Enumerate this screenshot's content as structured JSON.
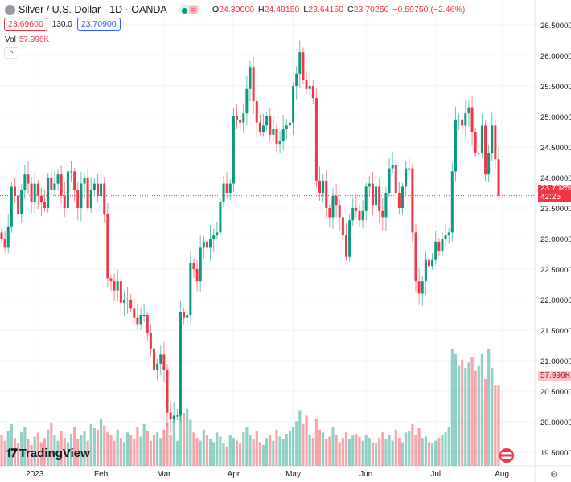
{
  "header": {
    "title": "Silver / U.S. Dollar · 1D · OANDA",
    "eq_label": "=",
    "ohlc": {
      "o_label": "O",
      "o": "24.30000",
      "h_label": "H",
      "h": "24.49150",
      "l_label": "L",
      "l": "23.64150",
      "c_label": "C",
      "c": "23.70250",
      "change": "−0.59750 (−2.46%)"
    },
    "sell_price": "23.69600",
    "spread": "130.0",
    "buy_price": "23.70900",
    "vol_label": "Vol",
    "vol_value": "57.996K",
    "collapse": "^"
  },
  "branding": {
    "logo_mark": "TV",
    "name": "TradingView"
  },
  "last_price_label": {
    "price": "23.70250",
    "countdown": "42:25"
  },
  "volume_label": "57.996K",
  "colors": {
    "up": "#089981",
    "down": "#f23645"
  },
  "chart_data": {
    "type": "candlestick",
    "ylim": [
      19.3,
      26.75
    ],
    "y_ticks": [
      "26.50000",
      "26.00000",
      "25.50000",
      "25.00000",
      "24.50000",
      "24.00000",
      "23.50000",
      "23.00000",
      "22.50000",
      "22.00000",
      "21.50000",
      "21.00000",
      "20.50000",
      "20.00000",
      "19.50000"
    ],
    "x_labels": [
      {
        "label": "2023",
        "bar": 10
      },
      {
        "label": "Feb",
        "bar": 30
      },
      {
        "label": "Mar",
        "bar": 49
      },
      {
        "label": "Apr",
        "bar": 70
      },
      {
        "label": "May",
        "bar": 88
      },
      {
        "label": "Jun",
        "bar": 110
      },
      {
        "label": "Jul",
        "bar": 131
      },
      {
        "label": "Aug",
        "bar": 151
      }
    ],
    "first_open": 23.1,
    "closes": [
      23.0,
      22.85,
      23.2,
      23.85,
      23.7,
      23.4,
      23.8,
      24.05,
      23.9,
      23.6,
      23.9,
      23.7,
      23.6,
      23.5,
      24.0,
      23.8,
      23.9,
      24.05,
      23.7,
      23.5,
      24.1,
      24.1,
      23.8,
      23.5,
      23.9,
      24.0,
      23.5,
      23.8,
      23.9,
      23.7,
      23.9,
      23.4,
      22.35,
      22.3,
      22.15,
      22.3,
      21.95,
      22.0,
      22.0,
      21.85,
      21.7,
      21.6,
      21.75,
      21.75,
      21.45,
      21.2,
      20.85,
      20.95,
      21.1,
      20.85,
      20.15,
      20.05,
      20.1,
      20.1,
      21.8,
      21.7,
      21.75,
      22.6,
      22.5,
      22.3,
      22.85,
      22.95,
      22.85,
      23.0,
      23.05,
      23.1,
      23.6,
      23.9,
      23.75,
      23.9,
      25.0,
      24.95,
      24.9,
      25.05,
      25.45,
      25.8,
      25.25,
      24.9,
      24.75,
      24.85,
      25.0,
      24.7,
      24.8,
      24.55,
      24.6,
      24.8,
      24.85,
      24.9,
      25.5,
      25.7,
      26.05,
      25.6,
      25.45,
      25.5,
      25.3,
      23.95,
      23.75,
      23.95,
      23.5,
      23.35,
      23.7,
      23.55,
      23.35,
      23.05,
      22.7,
      23.3,
      23.5,
      23.45,
      23.3,
      23.45,
      23.85,
      23.9,
      23.55,
      23.85,
      23.45,
      23.35,
      23.75,
      24.15,
      24.2,
      23.75,
      23.5,
      23.85,
      24.15,
      24.15,
      23.1,
      22.3,
      22.1,
      22.3,
      22.65,
      22.55,
      22.65,
      22.95,
      22.8,
      23.0,
      23.05,
      23.1,
      24.1,
      24.95,
      24.95,
      24.85,
      25.05,
      25.15,
      24.75,
      24.4,
      24.4,
      24.85,
      24.05,
      24.4,
      24.85,
      24.3,
      23.7025
    ],
    "last_bar": {
      "open": 24.3,
      "high": 24.4915,
      "low": 23.6415,
      "close": 23.7025
    },
    "volumes_k": [
      22,
      18,
      25,
      30,
      20,
      16,
      24,
      28,
      19,
      15,
      21,
      24,
      17,
      20,
      26,
      31,
      22,
      18,
      25,
      20,
      17,
      23,
      28,
      19,
      22,
      25,
      18,
      30,
      27,
      26,
      34,
      29,
      24,
      22,
      18,
      26,
      20,
      17,
      24,
      22,
      19,
      28,
      21,
      30,
      25,
      18,
      22,
      24,
      20,
      26,
      31,
      22,
      35,
      18,
      40,
      38,
      41,
      33,
      24,
      20,
      18,
      26,
      22,
      19,
      17,
      24,
      21,
      16,
      14,
      22,
      20,
      18,
      16,
      24,
      28,
      22,
      19,
      25,
      17,
      15,
      20,
      22,
      18,
      26,
      21,
      19,
      23,
      25,
      28,
      32,
      40,
      30,
      36,
      22,
      20,
      34,
      26,
      24,
      19,
      21,
      28,
      22,
      17,
      20,
      24,
      19,
      22,
      23,
      21,
      18,
      22,
      20,
      17,
      16,
      20,
      24,
      19,
      22,
      18,
      26,
      20,
      17,
      24,
      25,
      30,
      22,
      27,
      20,
      21,
      17,
      16,
      18,
      20,
      22,
      24,
      28,
      84,
      80,
      72,
      76,
      70,
      74,
      78,
      68,
      72,
      80,
      62,
      84,
      70,
      58,
      57.996
    ]
  }
}
